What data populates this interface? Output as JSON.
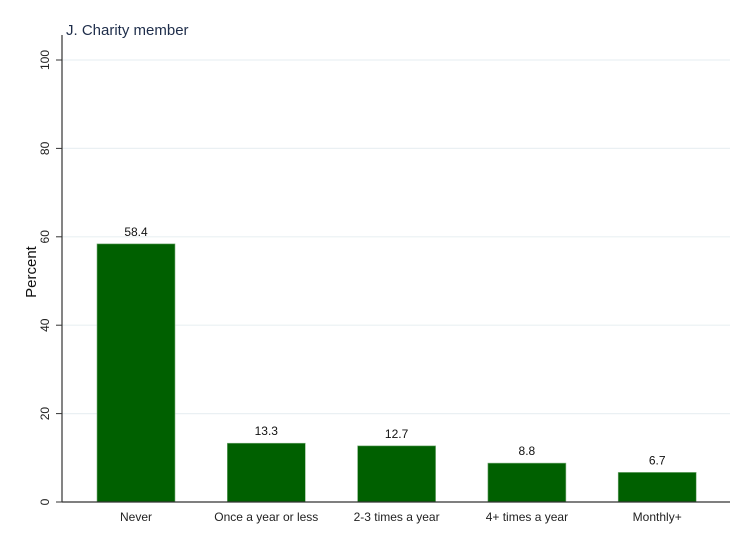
{
  "chart_data": {
    "type": "bar",
    "title": "J. Charity member",
    "xlabel": "",
    "ylabel": "Percent",
    "ylim": [
      0,
      100
    ],
    "yticks": [
      0,
      20,
      40,
      60,
      80,
      100
    ],
    "grid": true,
    "categories": [
      "Never",
      "Once a year or less",
      "2-3 times a year",
      "4+ times a year",
      "Monthly+"
    ],
    "values": [
      58.4,
      13.3,
      12.7,
      8.8,
      6.7
    ],
    "value_labels": [
      "58.4",
      "13.3",
      "12.7",
      "8.8",
      "6.7"
    ],
    "colors": {
      "bar": "#006000",
      "bar_edge": "#7fb07f",
      "grid": "#eaf0f3",
      "title": "#1e2d4a",
      "axis": "#333333"
    }
  }
}
